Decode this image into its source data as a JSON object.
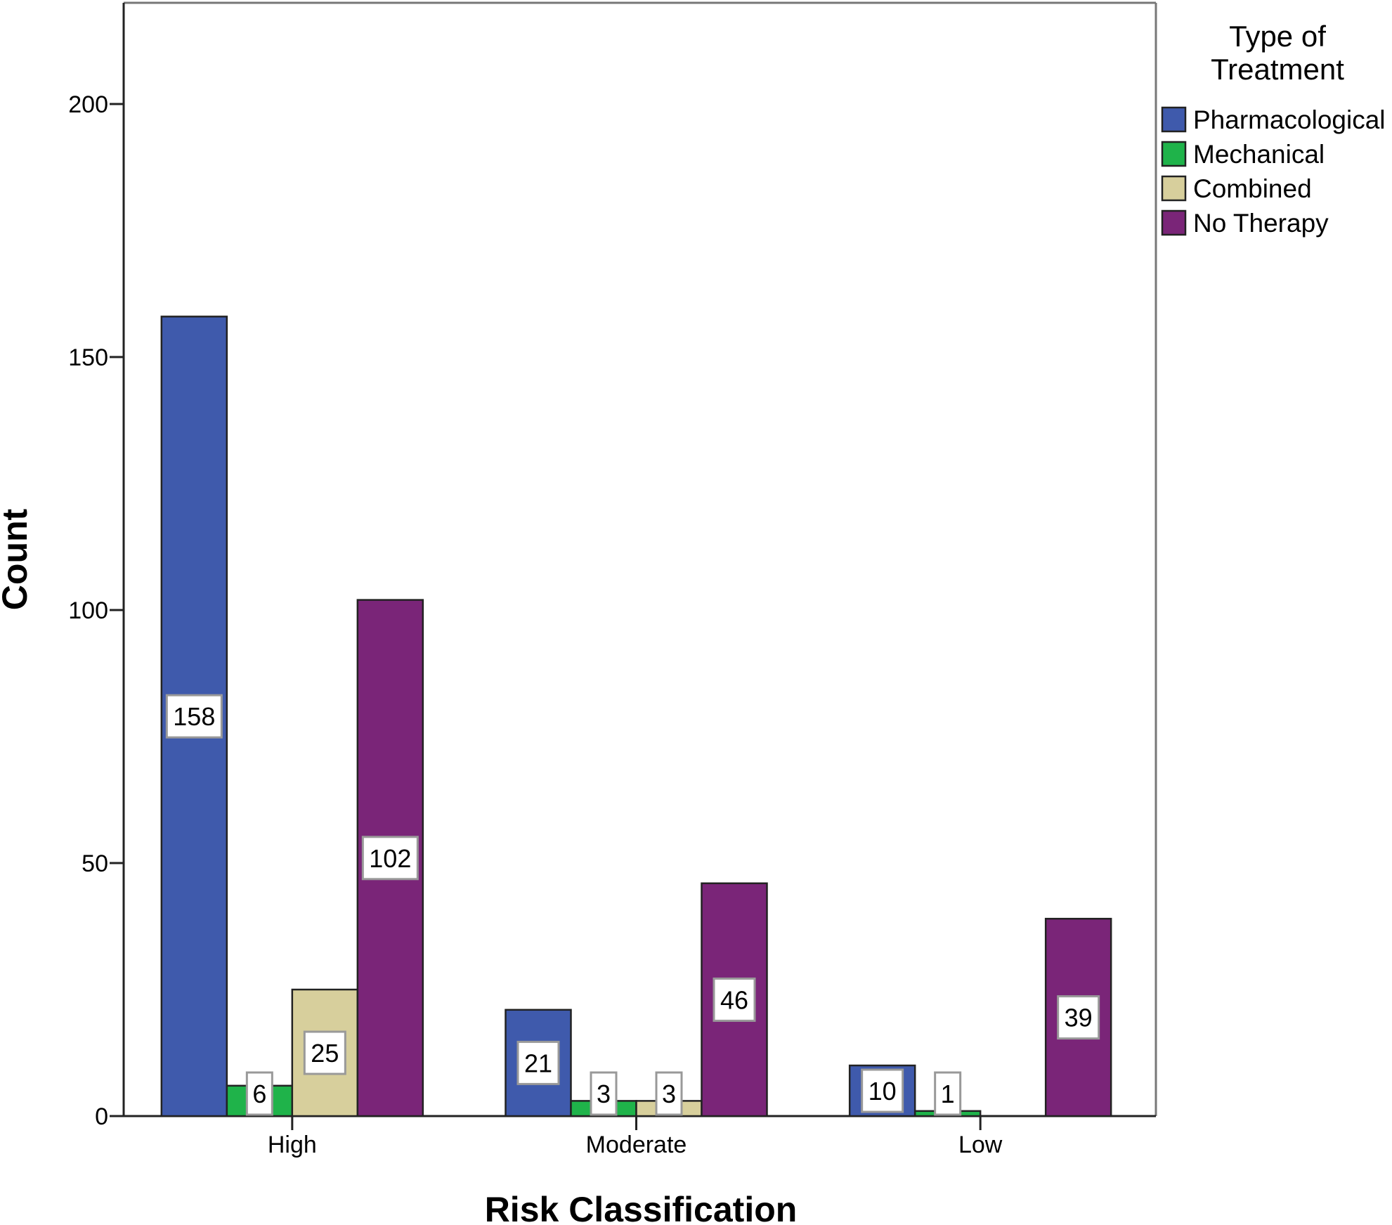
{
  "chart_data": {
    "type": "bar",
    "xlabel": "Risk Classification",
    "ylabel": "Count",
    "ylim": [
      0,
      220
    ],
    "yticks": [
      0,
      50,
      100,
      150,
      200
    ],
    "categories": [
      "High",
      "Moderate",
      "Low"
    ],
    "legend": {
      "title_lines": [
        "Type of",
        "Treatment"
      ],
      "placement": "right"
    },
    "series": [
      {
        "name": "Pharmacological",
        "color": "#3f5aac",
        "values": [
          158,
          21,
          10
        ]
      },
      {
        "name": "Mechanical",
        "color": "#1fb34a",
        "values": [
          6,
          3,
          1
        ]
      },
      {
        "name": "Combined",
        "color": "#d7cf9c",
        "values": [
          25,
          3,
          0
        ]
      },
      {
        "name": "No Therapy",
        "color": "#7a2578",
        "values": [
          102,
          46,
          39
        ]
      }
    ],
    "data_labels": [
      [
        "158",
        "21",
        "10"
      ],
      [
        "6",
        "3",
        "1"
      ],
      [
        "25",
        "3",
        ""
      ],
      [
        "102",
        "46",
        "39"
      ]
    ],
    "grid": false
  }
}
